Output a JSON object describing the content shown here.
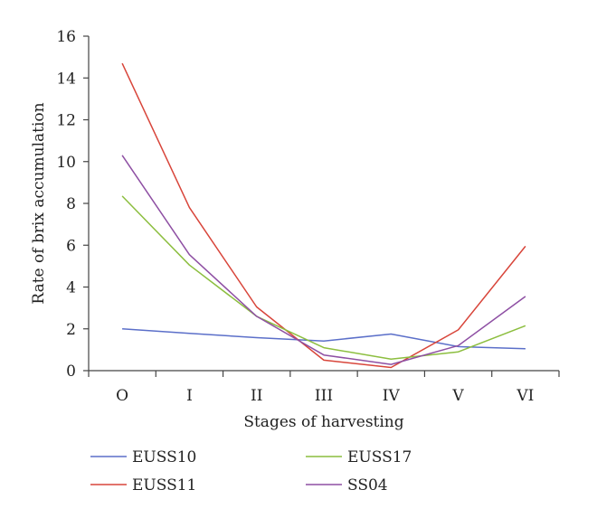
{
  "chart_data": {
    "type": "line",
    "title": "",
    "xlabel": "Stages of harvesting",
    "ylabel": "Rate of brix accumulation",
    "categories": [
      "O",
      "I",
      "II",
      "III",
      "IV",
      "V",
      "VI"
    ],
    "ylim": [
      0,
      16
    ],
    "yticks": [
      "0",
      "2",
      "4",
      "6",
      "8",
      "10",
      "12",
      "14",
      "16"
    ],
    "grid": false,
    "legend_position": "bottom",
    "series": [
      {
        "name": "EUSS10",
        "color": "#5b6fc9",
        "values": [
          2.0,
          1.78,
          1.58,
          1.42,
          1.75,
          1.15,
          1.05
        ]
      },
      {
        "name": "EUSS11",
        "color": "#d8453a",
        "values": [
          14.7,
          7.8,
          3.05,
          0.5,
          0.15,
          1.95,
          5.95
        ]
      },
      {
        "name": "EUSS17",
        "color": "#8cbe3f",
        "values": [
          8.35,
          5.05,
          2.6,
          1.1,
          0.55,
          0.9,
          2.15
        ]
      },
      {
        "name": "SS04",
        "color": "#8e4fa3",
        "values": [
          10.3,
          5.55,
          2.6,
          0.75,
          0.3,
          1.2,
          3.55
        ]
      }
    ]
  }
}
